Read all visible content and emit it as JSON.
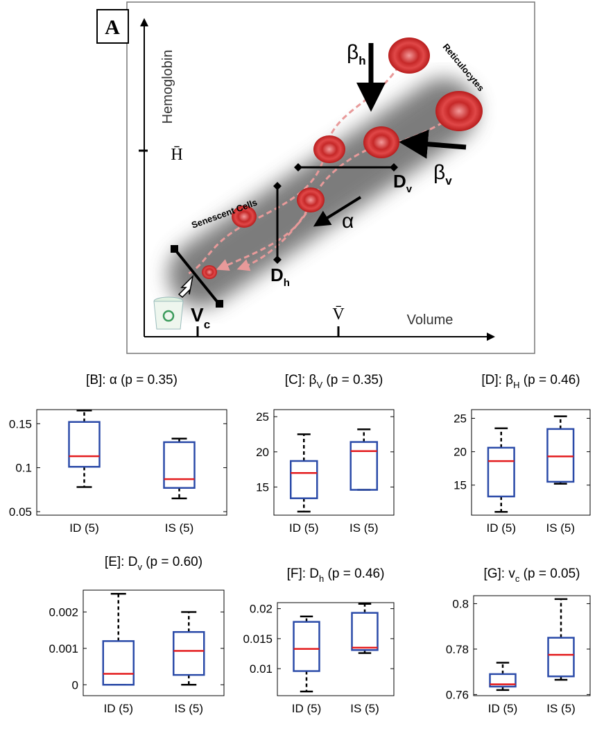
{
  "panel_a": {
    "label": "A",
    "y_axis": "Hemoglobin",
    "x_axis": "Volume",
    "h_mean": "H̄",
    "v_mean": "V̄",
    "reticulocytes": "Reticulocytes",
    "senescent": "Senescent Cells",
    "beta_h": {
      "main": "β",
      "sub": "h"
    },
    "beta_v": {
      "main": "β",
      "sub": "v"
    },
    "d_v": {
      "main": "D",
      "sub": "v"
    },
    "d_h": {
      "main": "D",
      "sub": "h"
    },
    "alpha": "α",
    "v_c": {
      "main": "V",
      "sub": "c"
    }
  },
  "chart_data": [
    {
      "type": "box",
      "title": [
        "[B]: α (p = 0.35)"
      ],
      "categories": [
        "ID (5)",
        "IS (5)"
      ],
      "boxes": [
        {
          "min": 0.078,
          "q1": 0.101,
          "median": 0.113,
          "q3": 0.152,
          "max": 0.165
        },
        {
          "min": 0.065,
          "q1": 0.077,
          "median": 0.087,
          "q3": 0.129,
          "max": 0.133
        }
      ],
      "ylim": [
        0.046,
        0.166
      ],
      "yticks": [
        0.05,
        0.1,
        0.15
      ],
      "color": "#2a4aa8",
      "median_color": "#e31a1c"
    },
    {
      "type": "box",
      "title": [
        "[C]: β",
        "V",
        " (p = 0.35)"
      ],
      "categories": [
        "ID (5)",
        "IS (5)"
      ],
      "boxes": [
        {
          "min": 11.5,
          "q1": 13.4,
          "median": 17,
          "q3": 18.7,
          "max": 22.5
        },
        {
          "min": 14.6,
          "q1": 14.6,
          "median": 20.1,
          "q3": 21.4,
          "max": 23.2
        }
      ],
      "ylim": [
        11,
        26
      ],
      "yticks": [
        15,
        20,
        25
      ],
      "color": "#2a4aa8",
      "median_color": "#e31a1c"
    },
    {
      "type": "box",
      "title": [
        "[D]: β",
        "H",
        " (p = 0.46)"
      ],
      "categories": [
        "ID (5)",
        "IS (5)"
      ],
      "boxes": [
        {
          "min": 11,
          "q1": 13.3,
          "median": 18.6,
          "q3": 20.6,
          "max": 23.5
        },
        {
          "min": 15.2,
          "q1": 15.5,
          "median": 19.3,
          "q3": 23.4,
          "max": 25.3
        }
      ],
      "ylim": [
        10.5,
        26.3
      ],
      "yticks": [
        15,
        20,
        25
      ],
      "color": "#2a4aa8",
      "median_color": "#e31a1c"
    },
    {
      "type": "box",
      "title": [
        "[E]: D",
        "v",
        " (p = 0.60)"
      ],
      "categories": [
        "ID (5)",
        "IS (5)"
      ],
      "boxes": [
        {
          "min": 0,
          "q1": 0,
          "median": 0.0003,
          "q3": 0.0012,
          "max": 0.0025
        },
        {
          "min": 0,
          "q1": 0.00027,
          "median": 0.00093,
          "q3": 0.00145,
          "max": 0.002
        }
      ],
      "ylim": [
        -0.0003,
        0.0026
      ],
      "yticks": [
        0,
        0.001,
        0.002
      ],
      "color": "#2a4aa8",
      "median_color": "#e31a1c"
    },
    {
      "type": "box",
      "title": [
        "[F]: D",
        "h",
        " (p = 0.46)"
      ],
      "categories": [
        "ID (5)",
        "IS (5)"
      ],
      "boxes": [
        {
          "min": 0.0062,
          "q1": 0.0096,
          "median": 0.0133,
          "q3": 0.0178,
          "max": 0.0187
        },
        {
          "min": 0.0126,
          "q1": 0.0131,
          "median": 0.0135,
          "q3": 0.0193,
          "max": 0.0208
        }
      ],
      "ylim": [
        0.0055,
        0.021
      ],
      "yticks": [
        0.01,
        0.015,
        0.02
      ],
      "color": "#2a4aa8",
      "median_color": "#e31a1c"
    },
    {
      "type": "box",
      "title": [
        "[G]: v",
        "c",
        " (p = 0.05)"
      ],
      "categories": [
        "ID (5)",
        "IS (5)"
      ],
      "boxes": [
        {
          "min": 0.762,
          "q1": 0.7635,
          "median": 0.7645,
          "q3": 0.769,
          "max": 0.774
        },
        {
          "min": 0.7665,
          "q1": 0.768,
          "median": 0.7775,
          "q3": 0.785,
          "max": 0.802
        }
      ],
      "ylim": [
        0.7595,
        0.8035
      ],
      "yticks": [
        0.76,
        0.78,
        0.8
      ],
      "color": "#2a4aa8",
      "median_color": "#e31a1c"
    }
  ]
}
